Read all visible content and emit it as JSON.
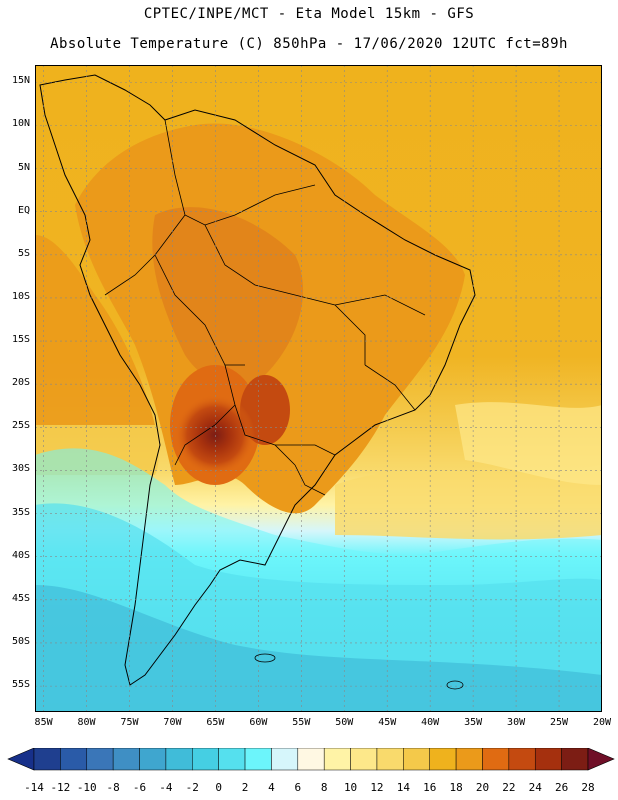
{
  "header": {
    "line1": "CPTEC/INPE/MCT -  Eta Model 15km - GFS",
    "line2": "Absolute Temperature (C) 850hPa - 17/06/2020 12UTC fct=89h"
  },
  "map": {
    "region": "South America",
    "lat_range": [
      -58,
      17
    ],
    "lon_range": [
      -86,
      -20
    ],
    "lat_labels": [
      "15N",
      "10N",
      "5N",
      "EQ",
      "5S",
      "10S",
      "15S",
      "20S",
      "25S",
      "30S",
      "35S",
      "40S",
      "45S",
      "50S",
      "55S"
    ],
    "lon_labels": [
      "85W",
      "80W",
      "75W",
      "70W",
      "65W",
      "60W",
      "55W",
      "50W",
      "45W",
      "40W",
      "35W",
      "30W",
      "25W",
      "20W"
    ]
  },
  "colorbar": {
    "labels": [
      "-14",
      "-12",
      "-10",
      "-8",
      "-6",
      "-4",
      "-2",
      "0",
      "2",
      "4",
      "6",
      "8",
      "10",
      "12",
      "14",
      "16",
      "18",
      "20",
      "22",
      "24",
      "26",
      "28"
    ],
    "colors": [
      "#1f3f8f",
      "#2a5ba8",
      "#3a76b8",
      "#3f8fc4",
      "#3fa6cf",
      "#40bcd9",
      "#45cfe3",
      "#55e0ee",
      "#6cf5fb",
      "#d6f6fb",
      "#fff8e3",
      "#fff3a6",
      "#fde88a",
      "#f9da6c",
      "#f4c94a",
      "#efb21d",
      "#eb9a1a",
      "#e06b12",
      "#c44a10",
      "#a5300e",
      "#7c1d14"
    ],
    "under_color": "#17308a",
    "over_color": "#6f0f27"
  }
}
